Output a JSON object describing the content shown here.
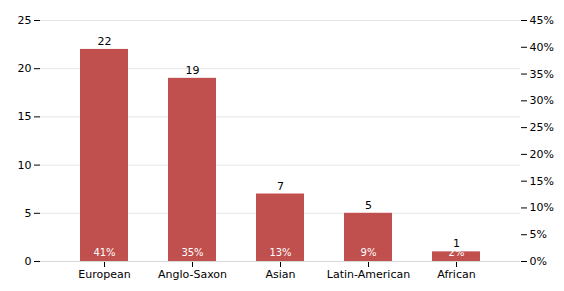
{
  "chart_data": {
    "type": "bar",
    "categories": [
      "European",
      "Anglo-Saxon",
      "Asian",
      "Latin-American",
      "African"
    ],
    "values": [
      22,
      19,
      7,
      5,
      1
    ],
    "annotations": [
      "41%",
      "35%",
      "13%",
      "9%",
      "2%"
    ],
    "color": "#c0504d",
    "data_labels": true,
    "ylim": [
      0,
      25
    ],
    "yticks": [
      0,
      5,
      10,
      15,
      20,
      25
    ],
    "y2lim": [
      0,
      0.45
    ],
    "y2ticks": [
      {
        "value": 0.0,
        "label": "0%"
      },
      {
        "value": 0.05,
        "label": "5%"
      },
      {
        "value": 0.1,
        "label": "10%"
      },
      {
        "value": 0.15,
        "label": "15%"
      },
      {
        "value": 0.2,
        "label": "20%"
      },
      {
        "value": 0.25,
        "label": "25%"
      },
      {
        "value": 0.3,
        "label": "30%"
      },
      {
        "value": 0.35,
        "label": "35%"
      },
      {
        "value": 0.4,
        "label": "40%"
      },
      {
        "value": 0.45,
        "label": "45%"
      }
    ],
    "grid": true
  }
}
